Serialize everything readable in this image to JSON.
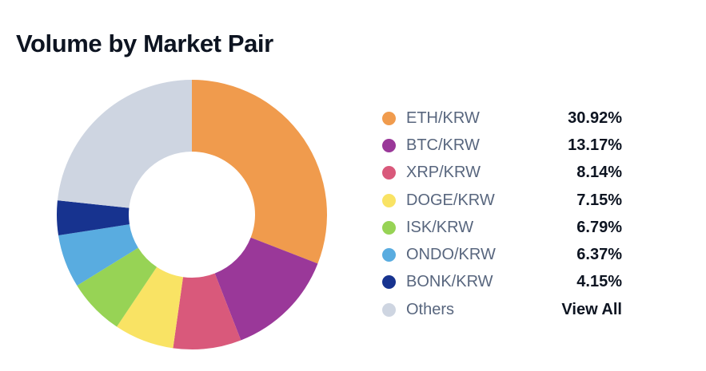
{
  "header": {
    "title": "Volume by Market Pair"
  },
  "chart_data": {
    "type": "pie",
    "variant": "donut",
    "title": "Volume by Market Pair",
    "legend_position": "right",
    "start_angle_deg": 0,
    "direction": "clockwise",
    "donut_hole_ratio": 0.47,
    "slices": [
      {
        "label": "ETH/KRW",
        "value": 30.92,
        "display_value": "30.92%",
        "color": "#F09B4D",
        "value_is_link": false
      },
      {
        "label": "BTC/KRW",
        "value": 13.17,
        "display_value": "13.17%",
        "color": "#9A3899",
        "value_is_link": false
      },
      {
        "label": "XRP/KRW",
        "value": 8.14,
        "display_value": "8.14%",
        "color": "#D9597B",
        "value_is_link": false
      },
      {
        "label": "DOGE/KRW",
        "value": 7.15,
        "display_value": "7.15%",
        "color": "#F9E364",
        "value_is_link": false
      },
      {
        "label": "ISK/KRW",
        "value": 6.79,
        "display_value": "6.79%",
        "color": "#97D355",
        "value_is_link": false
      },
      {
        "label": "ONDO/KRW",
        "value": 6.37,
        "display_value": "6.37%",
        "color": "#59ACE0",
        "value_is_link": false
      },
      {
        "label": "BONK/KRW",
        "value": 4.15,
        "display_value": "4.15%",
        "color": "#17338F",
        "value_is_link": false
      },
      {
        "label": "Others",
        "value": 23.31,
        "display_value": "View All",
        "color": "#CED5E1",
        "value_is_link": true
      }
    ]
  },
  "colors": {
    "title_text": "#0D1421",
    "legend_label_text": "#58667E",
    "legend_value_text": "#0D1421",
    "background": "#FFFFFF"
  }
}
